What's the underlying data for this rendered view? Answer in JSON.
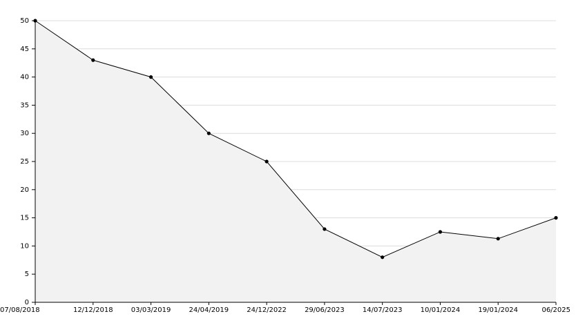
{
  "chart_data": {
    "type": "area",
    "categories": [
      "07/08/2018",
      "12/12/2018",
      "03/03/2019",
      "24/04/2019",
      "24/12/2022",
      "29/06/2023",
      "14/07/2023",
      "10/01/2024",
      "19/01/2024",
      "06/2025"
    ],
    "values": [
      50,
      43,
      40,
      30,
      25,
      13,
      8,
      12.5,
      11.3,
      15
    ],
    "color": "#000000",
    "fill": "#f2f2f2",
    "ylim": [
      0,
      50
    ],
    "yticks": [
      0,
      5,
      10,
      15,
      20,
      25,
      30,
      35,
      40,
      45,
      50
    ],
    "grid": true
  }
}
